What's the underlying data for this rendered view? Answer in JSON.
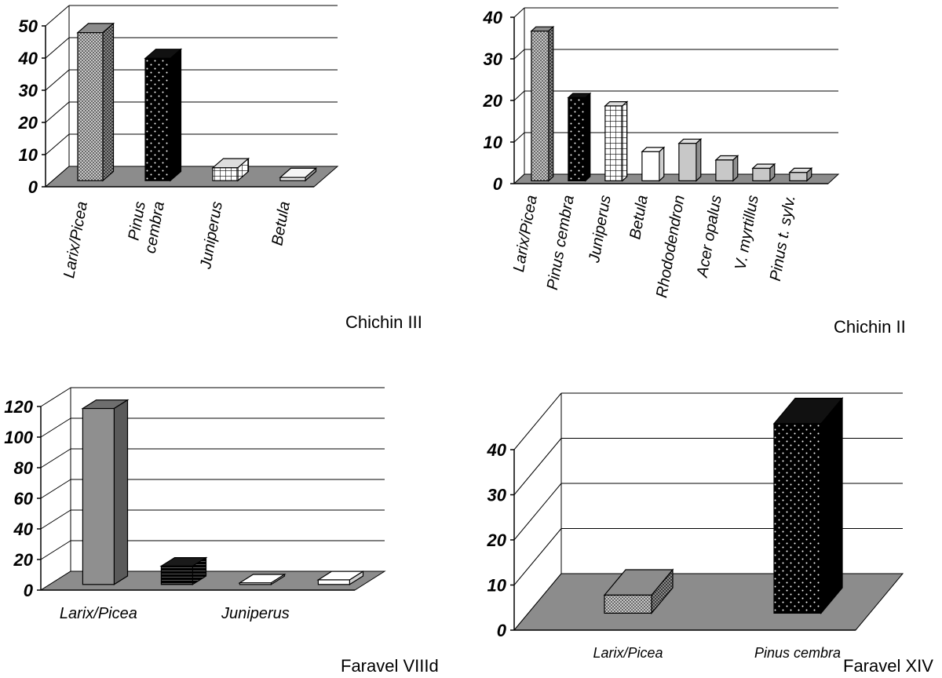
{
  "chart_data": [
    {
      "type": "bar",
      "title": "Chichin III",
      "categories": [
        "Larix/Picea",
        "Pinus cembra",
        "Juniperus",
        "Betula"
      ],
      "values": [
        46,
        38,
        4,
        1
      ],
      "ylim": [
        0,
        50
      ],
      "yticks": [
        "0",
        "10",
        "20",
        "30",
        "40",
        "50"
      ],
      "grid": true,
      "patterns": [
        "checker",
        "dots-dark",
        "grid",
        "plain-light"
      ]
    },
    {
      "type": "bar",
      "title": "Chichin II",
      "categories": [
        "Larix/Picea",
        "Pinus cembra",
        "Juniperus",
        "Betula",
        "Rhododendron",
        "Acer opalus",
        "V. myrtillus",
        "Pinus t. sylv."
      ],
      "values": [
        36,
        20,
        18,
        7,
        9,
        5,
        3,
        2
      ],
      "ylim": [
        0,
        40
      ],
      "yticks": [
        "0",
        "10",
        "20",
        "30",
        "40"
      ],
      "grid": true,
      "patterns": [
        "checker",
        "dots-dark",
        "grid",
        "plain-white",
        "plain-gray",
        "plain-gray",
        "plain-gray",
        "plain-gray"
      ]
    },
    {
      "type": "bar",
      "title": "Faravel VIIId",
      "categories": [
        "Larix/Picea",
        "",
        "Juniperus",
        ""
      ],
      "values": [
        115,
        12,
        1,
        3
      ],
      "ylim": [
        0,
        120
      ],
      "yticks": [
        "0",
        "20",
        "40",
        "60",
        "80",
        "100",
        "120"
      ],
      "grid": true,
      "patterns": [
        "solid-gray",
        "stripes-dark",
        "plain-white",
        "plain-white"
      ]
    },
    {
      "type": "bar",
      "title": "Faravel XIV",
      "categories": [
        "Larix/Picea",
        "Pinus cembra"
      ],
      "values": [
        4,
        42
      ],
      "ylim": [
        0,
        40
      ],
      "yticks": [
        "0",
        "10",
        "20",
        "30",
        "40"
      ],
      "grid": true,
      "patterns": [
        "checker",
        "dots-dark"
      ]
    }
  ]
}
